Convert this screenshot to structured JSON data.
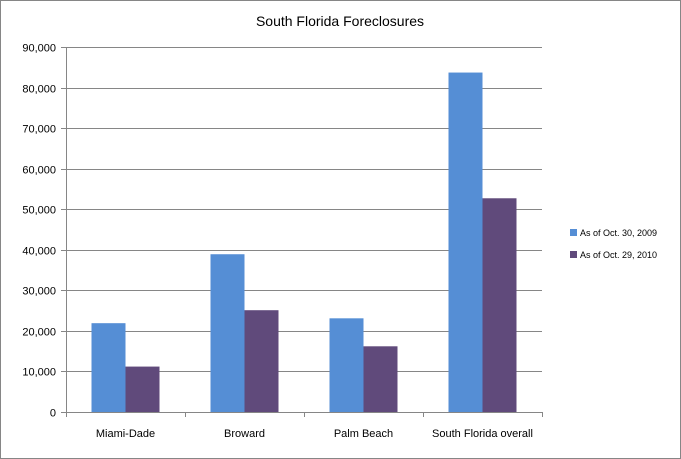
{
  "chart_data": {
    "type": "bar",
    "title": "South Florida Foreclosures",
    "categories": [
      "Miami-Dade",
      "Broward",
      "Palm Beach",
      "South Florida overall"
    ],
    "series": [
      {
        "name": "As of Oct. 30, 2009",
        "color": "#558ed5",
        "values": [
          21900,
          38900,
          23100,
          83700
        ]
      },
      {
        "name": "As of Oct. 29, 2010",
        "color": "#604a7b",
        "values": [
          11200,
          25100,
          16200,
          52700
        ]
      }
    ],
    "ylim": [
      0,
      90000
    ],
    "yticks": [
      "0",
      "10,000",
      "20,000",
      "30,000",
      "40,000",
      "50,000",
      "60,000",
      "70,000",
      "80,000",
      "90,000"
    ],
    "ytick_values": [
      0,
      10000,
      20000,
      30000,
      40000,
      50000,
      60000,
      70000,
      80000,
      90000
    ],
    "grid": true,
    "legend_position": "right"
  }
}
